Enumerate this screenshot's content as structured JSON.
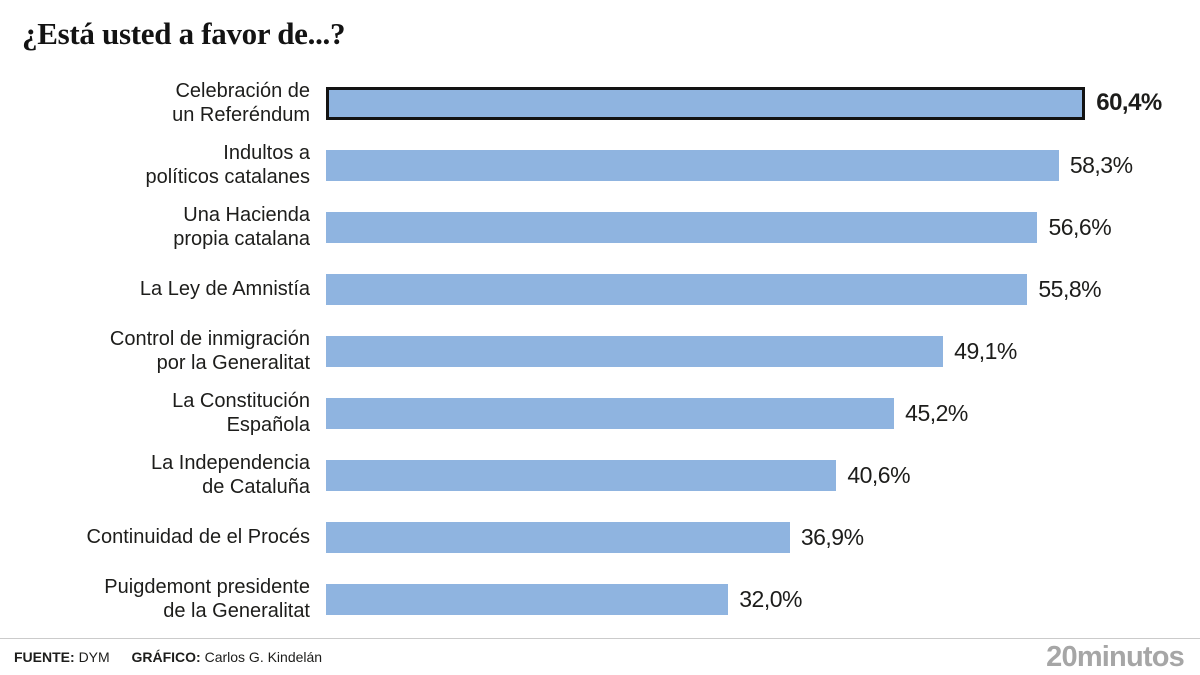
{
  "title": "¿Está usted a favor de...?",
  "chart_data": {
    "type": "bar",
    "orientation": "horizontal",
    "title": "¿Está usted a favor de...?",
    "unit": "%",
    "xlim": [
      0,
      63
    ],
    "grid": false,
    "legend": "none",
    "categories": [
      "Celebración de\nun Referéndum",
      "Indultos a\npolíticos catalanes",
      "Una Hacienda\npropia catalana",
      "La Ley de Amnistía",
      "Control de inmigración\npor la Generalitat",
      "La Constitución\nEspañola",
      "La Independencia\nde Cataluña",
      "Continuidad de el Procés",
      "Puigdemont presidente\nde la Generalitat"
    ],
    "values": [
      60.4,
      58.3,
      56.6,
      55.8,
      49.1,
      45.2,
      40.6,
      36.9,
      32.0
    ],
    "value_labels": [
      "60,4%",
      "58,3%",
      "56,6%",
      "55,8%",
      "49,1%",
      "45,2%",
      "40,6%",
      "36,9%",
      "32,0%"
    ],
    "highlighted_index": 0,
    "bar_color": "#8FB4E0",
    "highlight_border_color": "#131313",
    "text_color": "#1d1d1b"
  },
  "footer": {
    "source_label": "FUENTE:",
    "source_value": "DYM",
    "credit_label": "GRÁFICO:",
    "credit_value": "Carlos G. Kindelán",
    "logo": "20minutos",
    "logo_color": "#A6A6A6"
  }
}
